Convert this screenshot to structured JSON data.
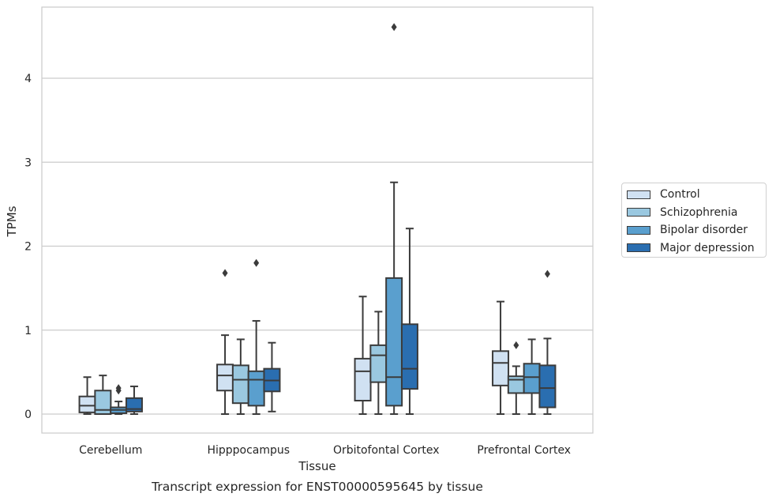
{
  "chart_data": {
    "type": "box",
    "title": "Transcript expression for ENST00000595645 by tissue",
    "xlabel": "Tissue",
    "ylabel": "TPMs",
    "ylim": [
      -0.22,
      4.85
    ],
    "yticks": [
      0,
      1,
      2,
      3,
      4
    ],
    "grid": "horizontal",
    "legend_position": "right",
    "categories": [
      "Cerebellum",
      "Hipppocampus",
      "Orbitofontal Cortex",
      "Prefrontal Cortex"
    ],
    "series": [
      {
        "name": "Control",
        "color": "#d0e1f2",
        "boxes": [
          {
            "whisker_low": 0.0,
            "q1": 0.02,
            "median": 0.1,
            "q3": 0.21,
            "whisker_high": 0.44,
            "outliers": []
          },
          {
            "whisker_low": 0.0,
            "q1": 0.28,
            "median": 0.46,
            "q3": 0.59,
            "whisker_high": 0.94,
            "outliers": [
              1.68
            ]
          },
          {
            "whisker_low": 0.0,
            "q1": 0.16,
            "median": 0.51,
            "q3": 0.66,
            "whisker_high": 1.4,
            "outliers": []
          },
          {
            "whisker_low": 0.0,
            "q1": 0.34,
            "median": 0.61,
            "q3": 0.75,
            "whisker_high": 1.34,
            "outliers": []
          }
        ]
      },
      {
        "name": "Schizophrenia",
        "color": "#9ac8e0",
        "boxes": [
          {
            "whisker_low": 0.0,
            "q1": 0.0,
            "median": 0.05,
            "q3": 0.28,
            "whisker_high": 0.46,
            "outliers": []
          },
          {
            "whisker_low": 0.0,
            "q1": 0.13,
            "median": 0.41,
            "q3": 0.58,
            "whisker_high": 0.89,
            "outliers": []
          },
          {
            "whisker_low": 0.0,
            "q1": 0.38,
            "median": 0.7,
            "q3": 0.82,
            "whisker_high": 1.22,
            "outliers": []
          },
          {
            "whisker_low": 0.0,
            "q1": 0.25,
            "median": 0.41,
            "q3": 0.45,
            "whisker_high": 0.57,
            "outliers": [
              0.82
            ]
          }
        ]
      },
      {
        "name": "Bipolar disorder",
        "color": "#5a9fce",
        "boxes": [
          {
            "whisker_low": 0.0,
            "q1": 0.01,
            "median": 0.05,
            "q3": 0.08,
            "whisker_high": 0.15,
            "outliers": [
              0.28,
              0.31
            ]
          },
          {
            "whisker_low": 0.0,
            "q1": 0.1,
            "median": 0.41,
            "q3": 0.51,
            "whisker_high": 1.11,
            "outliers": [
              1.8
            ]
          },
          {
            "whisker_low": 0.0,
            "q1": 0.1,
            "median": 0.44,
            "q3": 1.62,
            "whisker_high": 2.76,
            "outliers": [
              4.61
            ]
          },
          {
            "whisker_low": 0.0,
            "q1": 0.25,
            "median": 0.44,
            "q3": 0.6,
            "whisker_high": 0.89,
            "outliers": []
          }
        ]
      },
      {
        "name": "Major depression",
        "color": "#2a6eb0",
        "boxes": [
          {
            "whisker_low": 0.0,
            "q1": 0.03,
            "median": 0.06,
            "q3": 0.19,
            "whisker_high": 0.33,
            "outliers": []
          },
          {
            "whisker_low": 0.03,
            "q1": 0.27,
            "median": 0.4,
            "q3": 0.54,
            "whisker_high": 0.85,
            "outliers": []
          },
          {
            "whisker_low": 0.0,
            "q1": 0.3,
            "median": 0.54,
            "q3": 1.07,
            "whisker_high": 2.21,
            "outliers": []
          },
          {
            "whisker_low": 0.0,
            "q1": 0.08,
            "median": 0.31,
            "q3": 0.58,
            "whisker_high": 0.9,
            "outliers": [
              1.67
            ]
          }
        ]
      }
    ]
  }
}
